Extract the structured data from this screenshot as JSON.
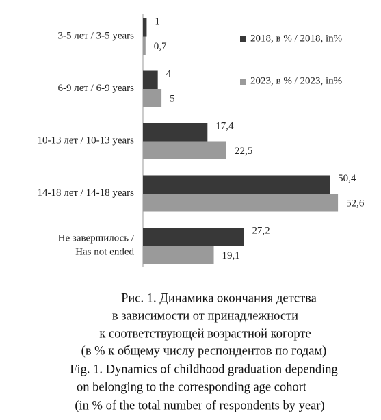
{
  "chart_data": {
    "type": "bar",
    "orientation": "horizontal",
    "categories": [
      "3-5 лет  / 3-5 years",
      "6-9 лет / 6-9 years",
      "10-13 лет / 10-13 years",
      "14-18 лет / 14-18 years",
      "Не завершилось /\nHas not ended"
    ],
    "series": [
      {
        "name": "2018, в % / 2018, in%",
        "color": "#383838",
        "values": [
          1,
          4,
          17.4,
          50.4,
          27.2
        ],
        "value_labels": [
          "1",
          "4",
          "17,4",
          "50,4",
          "27,2"
        ]
      },
      {
        "name": "2023, в % / 2023, in%",
        "color": "#9a9a9a",
        "values": [
          0.7,
          5,
          22.5,
          52.6,
          19.1
        ],
        "value_labels": [
          "0,7",
          "5",
          "22,5",
          "52,6",
          "19,1"
        ]
      }
    ],
    "caption": [
      "Рис. 1. Динамика окончания детства",
      "в зависимости от принадлежности",
      "к соответствующей возрастной когорте",
      "(в % к общему числу респондентов по годам)",
      "Fig. 1. Dynamics of childhood graduation depending",
      "on belonging to the corresponding age cohort",
      "(in % of the total number of respondents by year)"
    ]
  }
}
